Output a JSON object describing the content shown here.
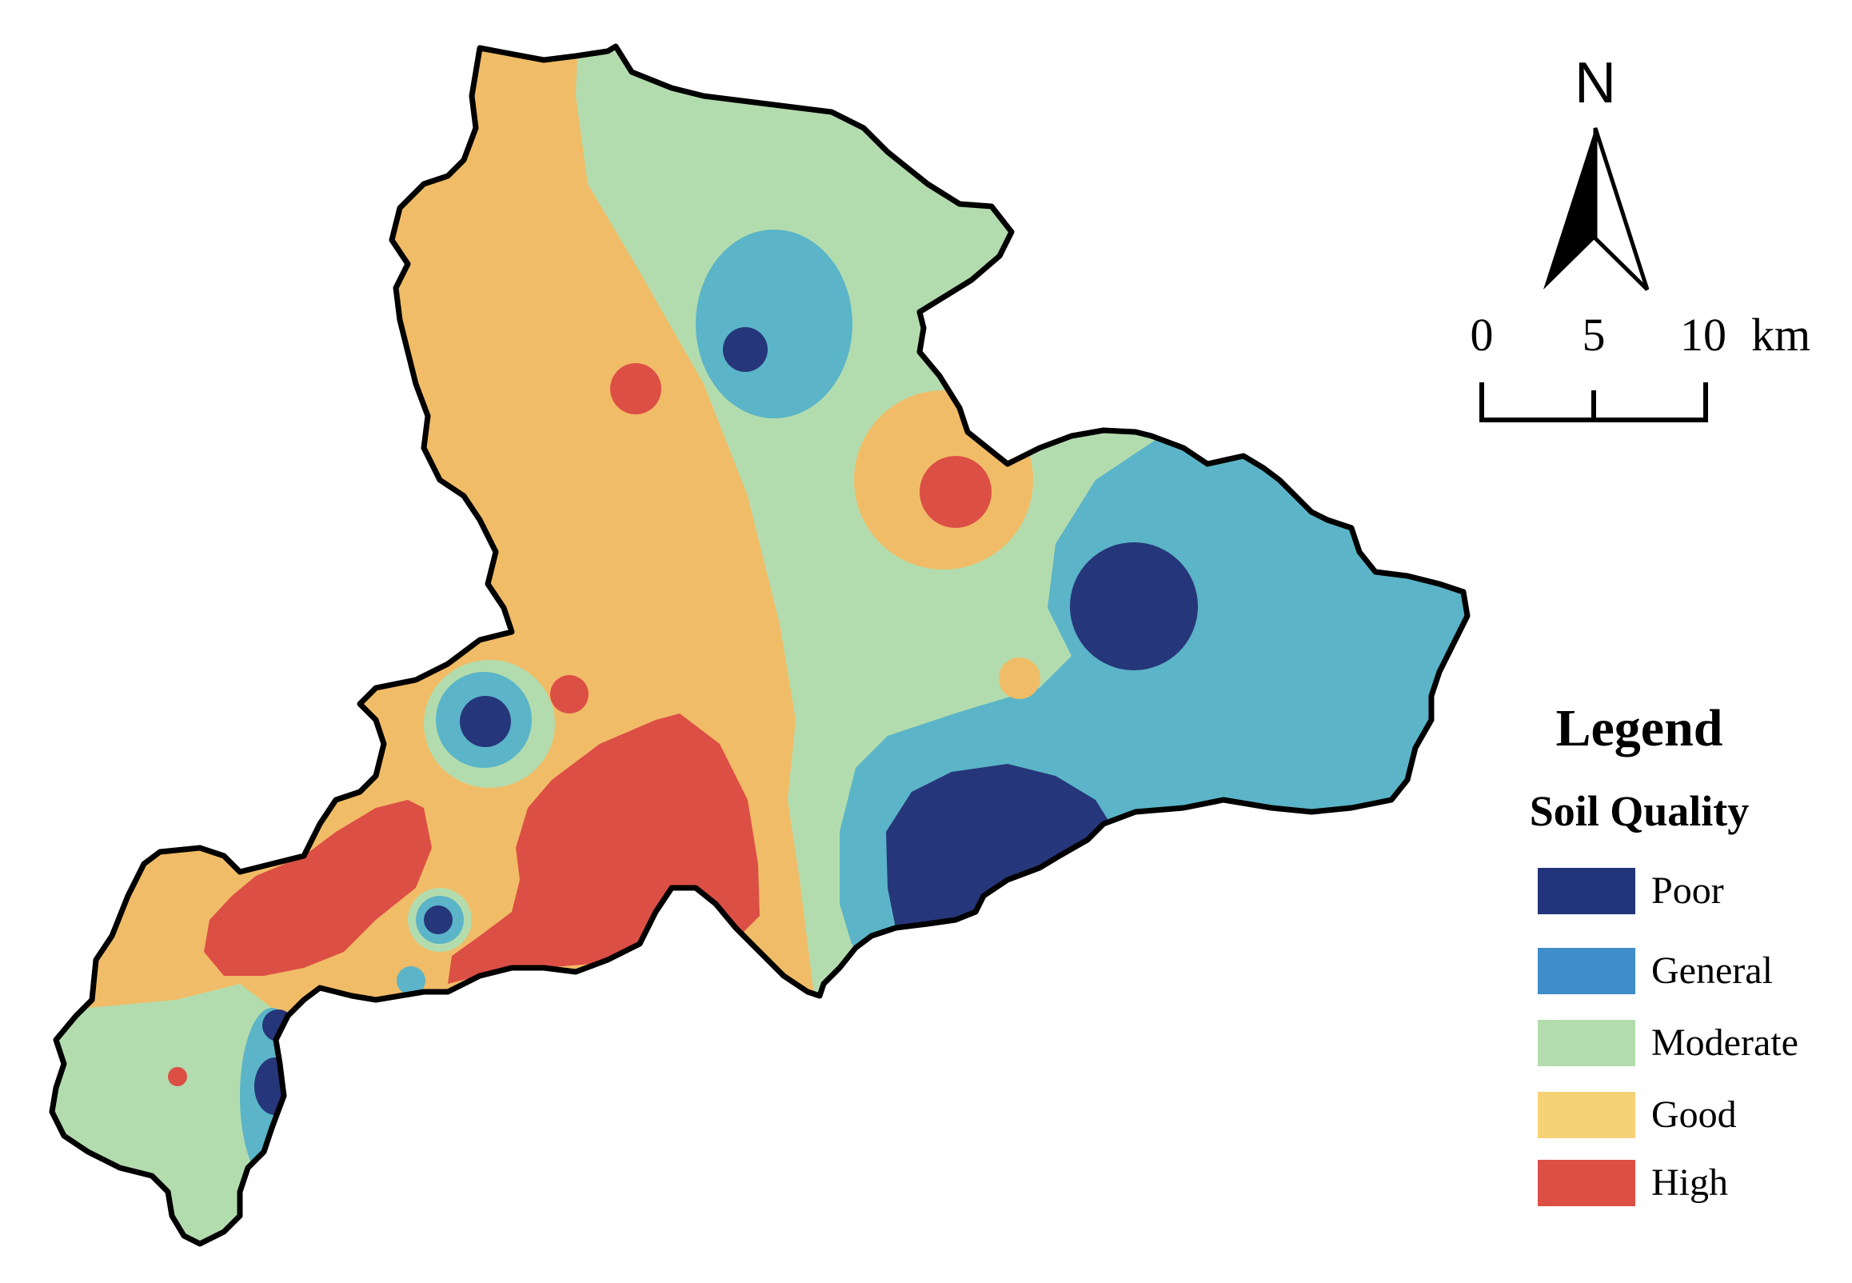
{
  "north_arrow": {
    "label": "N"
  },
  "scale_bar": {
    "ticks": [
      "0",
      "5",
      "10"
    ],
    "unit": "km"
  },
  "legend": {
    "title": "Legend",
    "subtitle": "Soil Quality",
    "classes": [
      {
        "label": "Poor",
        "color": "#22347a"
      },
      {
        "label": "General",
        "color": "#3f8ec9"
      },
      {
        "label": "Moderate",
        "color": "#b3dcae"
      },
      {
        "label": "Good",
        "color": "#f6d277"
      },
      {
        "label": "High",
        "color": "#dc4f45"
      }
    ]
  },
  "map_colors": {
    "poor": "#26367a",
    "general": "#5bb4c8",
    "moderate": "#b3dcae",
    "good": "#f1bc67",
    "high": "#dc4f45",
    "outline": "#000000"
  }
}
